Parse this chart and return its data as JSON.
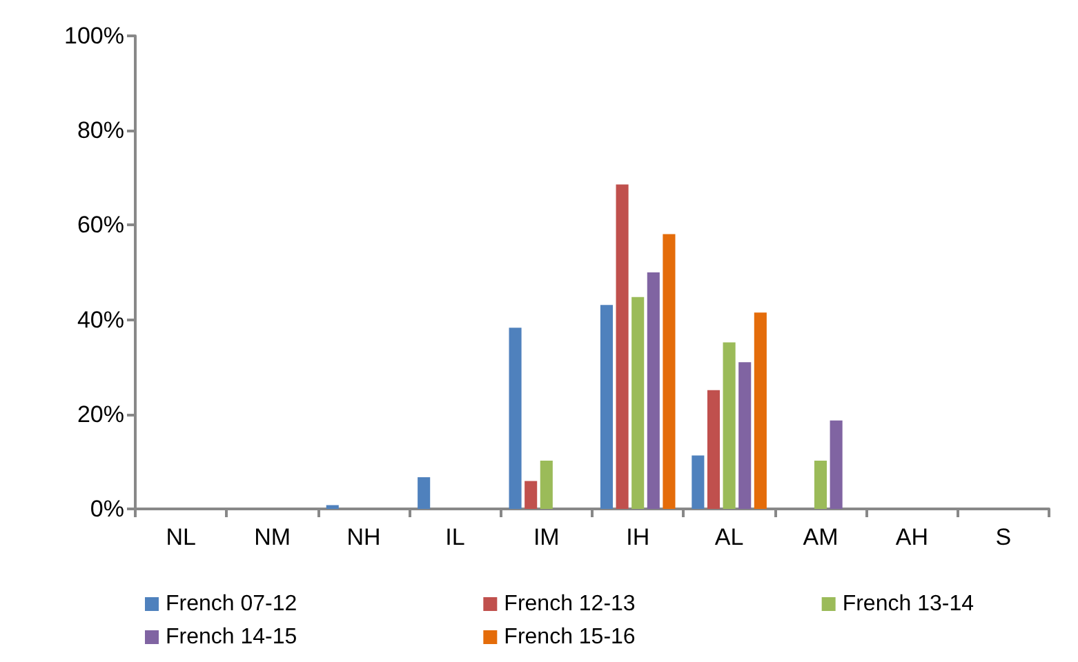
{
  "chart_data": {
    "type": "bar",
    "categories": [
      "NL",
      "NM",
      "NH",
      "IL",
      "IM",
      "IH",
      "AL",
      "AM",
      "AH",
      "S"
    ],
    "series": [
      {
        "name": "French 07-12",
        "color": "#4f81bd",
        "values": [
          0,
          0,
          0.8,
          6.7,
          38.3,
          43.1,
          11.3,
          0,
          0,
          0
        ]
      },
      {
        "name": "French 12-13",
        "color": "#c0504d",
        "values": [
          0,
          0,
          0,
          0,
          5.9,
          68.6,
          25.1,
          0,
          0,
          0
        ]
      },
      {
        "name": "French 13-14",
        "color": "#9bbb59",
        "values": [
          0,
          0,
          0,
          0,
          10.2,
          44.8,
          35.2,
          10.2,
          0,
          0
        ]
      },
      {
        "name": "French 14-15",
        "color": "#8064a2",
        "values": [
          0,
          0,
          0,
          0,
          0,
          50.0,
          31.0,
          18.7,
          0,
          0
        ]
      },
      {
        "name": "French 15-16",
        "color": "#e46c0a",
        "values": [
          0,
          0,
          0,
          0,
          0,
          58.1,
          41.5,
          0,
          0,
          0
        ]
      }
    ],
    "ylim": [
      0,
      100
    ],
    "yticks": [
      {
        "value": 0,
        "label": "0%"
      },
      {
        "value": 20,
        "label": "20%"
      },
      {
        "value": 40,
        "label": "40%"
      },
      {
        "value": 60,
        "label": "60%"
      },
      {
        "value": 80,
        "label": "80%"
      },
      {
        "value": 100,
        "label": "100%"
      }
    ],
    "grid": false,
    "legend": "bottom"
  }
}
